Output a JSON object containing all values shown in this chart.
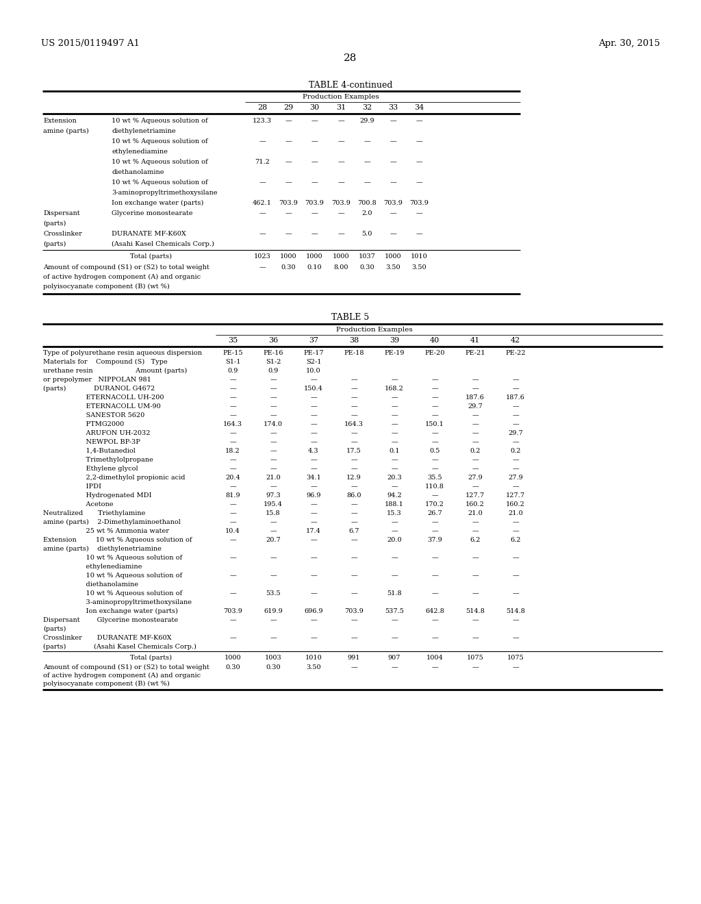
{
  "header_left": "US 2015/0119497 A1",
  "header_right": "Apr. 30, 2015",
  "page_number": "28",
  "table4_title": "TABLE 4-continued",
  "table4_subtitle": "Production Examples",
  "table4_columns": [
    "28",
    "29",
    "30",
    "31",
    "32",
    "33",
    "34"
  ],
  "table4_rows": [
    [
      "Extension",
      "10 wt % Aqueous solution of",
      [
        "123.3",
        "—",
        "—",
        "—",
        "29.9",
        "—",
        "—"
      ]
    ],
    [
      "amine (parts)",
      "diethylenetriamine",
      [
        "",
        "",
        "",
        "",
        "",
        "",
        ""
      ]
    ],
    [
      "",
      "10 wt % Aqueous solution of",
      [
        "—",
        "—",
        "—",
        "—",
        "—",
        "—",
        "—"
      ]
    ],
    [
      "",
      "ethylenediamine",
      [
        "",
        "",
        "",
        "",
        "",
        "",
        ""
      ]
    ],
    [
      "",
      "10 wt % Aqueous solution of",
      [
        "71.2",
        "—",
        "—",
        "—",
        "—",
        "—",
        "—"
      ]
    ],
    [
      "",
      "diethanolamine",
      [
        "",
        "",
        "",
        "",
        "",
        "",
        ""
      ]
    ],
    [
      "",
      "10 wt % Aqueous solution of",
      [
        "—",
        "—",
        "—",
        "—",
        "—",
        "—",
        "—"
      ]
    ],
    [
      "",
      "3-aminopropyltrimethoxysilane",
      [
        "",
        "",
        "",
        "",
        "",
        "",
        ""
      ]
    ],
    [
      "",
      "Ion exchange water (parts)",
      [
        "462.1",
        "703.9",
        "703.9",
        "703.9",
        "700.8",
        "703.9",
        "703.9"
      ]
    ],
    [
      "Dispersant",
      "Glycerine monostearate",
      [
        "—",
        "—",
        "—",
        "—",
        "2.0",
        "—",
        "—"
      ]
    ],
    [
      "(parts)",
      "",
      [
        "",
        "",
        "",
        "",
        "",
        "",
        ""
      ]
    ],
    [
      "Crosslinker",
      "DURANATE MF-K60X",
      [
        "—",
        "—",
        "—",
        "—",
        "5.0",
        "—",
        "—"
      ]
    ],
    [
      "(parts)",
      "(Asahi Kasel Chemicals Corp.)",
      [
        "",
        "",
        "",
        "",
        "",
        "",
        ""
      ]
    ]
  ],
  "table4_total_values": [
    "1023",
    "1000",
    "1000",
    "1000",
    "1037",
    "1000",
    "1010"
  ],
  "table4_amount_values": [
    "—",
    "0.30",
    "0.10",
    "8.00",
    "0.30",
    "3.50",
    "3.50"
  ],
  "table5_title": "TABLE 5",
  "table5_subtitle": "Production Examples",
  "table5_columns": [
    "35",
    "36",
    "37",
    "38",
    "39",
    "40",
    "41",
    "42"
  ],
  "table5_rows": [
    [
      "Type of polyurethane resin aqueous dispersion",
      [
        "PE-15",
        "PE-16",
        "PE-17",
        "PE-18",
        "PE-19",
        "PE-20",
        "PE-21",
        "PE-22"
      ]
    ],
    [
      "Materials for    Compound (S)   Type",
      [
        "S1-1",
        "S1-2",
        "S2-1",
        "",
        "",
        "",
        "",
        ""
      ]
    ],
    [
      "urethane resin                    Amount (parts)",
      [
        "0.9",
        "0.9",
        "10.0",
        "",
        "",
        "",
        "",
        ""
      ]
    ],
    [
      "or prepolymer   NIPPOLAN 981",
      [
        "—",
        "—",
        "—",
        "—",
        "—",
        "—",
        "—",
        "—"
      ]
    ],
    [
      "(parts)             DURANOL G4672",
      [
        "—",
        "—",
        "150.4",
        "—",
        "168.2",
        "—",
        "—",
        "—"
      ]
    ],
    [
      "                    ETERNACOLL UH-200",
      [
        "—",
        "—",
        "—",
        "—",
        "—",
        "—",
        "187.6",
        "187.6"
      ]
    ],
    [
      "                    ETERNACOLL UM-90",
      [
        "—",
        "—",
        "—",
        "—",
        "—",
        "—",
        "29.7",
        "—"
      ]
    ],
    [
      "                    SANESTOR 5620",
      [
        "—",
        "—",
        "—",
        "—",
        "—",
        "—",
        "—",
        "—"
      ]
    ],
    [
      "                    PTMG2000",
      [
        "164.3",
        "174.0",
        "—",
        "164.3",
        "—",
        "150.1",
        "—",
        "—"
      ]
    ],
    [
      "                    ARUFON UH-2032",
      [
        "—",
        "—",
        "—",
        "—",
        "—",
        "—",
        "—",
        "29.7"
      ]
    ],
    [
      "                    NEWPOL BP-3P",
      [
        "—",
        "—",
        "—",
        "—",
        "—",
        "—",
        "—",
        "—"
      ]
    ],
    [
      "                    1,4-Butanediol",
      [
        "18.2",
        "—",
        "4.3",
        "17.5",
        "0.1",
        "0.5",
        "0.2",
        "0.2"
      ]
    ],
    [
      "                    Trimethylolpropane",
      [
        "—",
        "—",
        "—",
        "—",
        "—",
        "—",
        "—",
        "—"
      ]
    ],
    [
      "                    Ethylene glycol",
      [
        "—",
        "—",
        "—",
        "—",
        "—",
        "—",
        "—",
        "—"
      ]
    ],
    [
      "                    2,2-dimethylol propionic acid",
      [
        "20.4",
        "21.0",
        "34.1",
        "12.9",
        "20.3",
        "35.5",
        "27.9",
        "27.9"
      ]
    ],
    [
      "                    IPDI",
      [
        "—",
        "—",
        "—",
        "—",
        "—",
        "110.8",
        "—",
        "—"
      ]
    ],
    [
      "                    Hydrogenated MDI",
      [
        "81.9",
        "97.3",
        "96.9",
        "86.0",
        "94.2",
        "—",
        "127.7",
        "127.7"
      ]
    ],
    [
      "                    Acetone",
      [
        "—",
        "195.4",
        "—",
        "—",
        "188.1",
        "170.2",
        "160.2",
        "160.2"
      ]
    ],
    [
      "Neutralized       Triethylamine",
      [
        "—",
        "15.8",
        "—",
        "—",
        "15.3",
        "26.7",
        "21.0",
        "21.0"
      ]
    ],
    [
      "amine (parts)    2-Dimethylaminoethanol",
      [
        "—",
        "—",
        "—",
        "—",
        "—",
        "—",
        "—",
        "—"
      ]
    ],
    [
      "                    25 wt % Ammonia water",
      [
        "10.4",
        "—",
        "17.4",
        "6.7",
        "—",
        "—",
        "—",
        "—"
      ]
    ],
    [
      "Extension         10 wt % Aqueous solution of",
      [
        "—",
        "20.7",
        "—",
        "—",
        "20.0",
        "37.9",
        "6.2",
        "6.2"
      ]
    ],
    [
      "amine (parts)    diethylenetriamine",
      [
        "",
        "",
        "",
        "",
        "",
        "",
        "",
        ""
      ]
    ],
    [
      "                    10 wt % Aqueous solution of",
      [
        "—",
        "—",
        "—",
        "—",
        "—",
        "—",
        "—",
        "—"
      ]
    ],
    [
      "                    ethylenediamine",
      [
        "",
        "",
        "",
        "",
        "",
        "",
        "",
        ""
      ]
    ],
    [
      "                    10 wt % Aqueous solution of",
      [
        "—",
        "—",
        "—",
        "—",
        "—",
        "—",
        "—",
        "—"
      ]
    ],
    [
      "                    diethanolamine",
      [
        "",
        "",
        "",
        "",
        "",
        "",
        "",
        ""
      ]
    ],
    [
      "                    10 wt % Aqueous solution of",
      [
        "—",
        "53.5",
        "—",
        "—",
        "51.8",
        "—",
        "—",
        "—"
      ]
    ],
    [
      "                    3-aminopropyltrimethoxysilane",
      [
        "",
        "",
        "",
        "",
        "",
        "",
        "",
        ""
      ]
    ],
    [
      "                    Ion exchange water (parts)",
      [
        "703.9",
        "619.9",
        "696.9",
        "703.9",
        "537.5",
        "642.8",
        "514.8",
        "514.8"
      ]
    ],
    [
      "Dispersant        Glycerine monostearate",
      [
        "—",
        "—",
        "—",
        "—",
        "—",
        "—",
        "—",
        "—"
      ]
    ],
    [
      "(parts)",
      [
        "",
        "",
        "",
        "",
        "",
        "",
        "",
        ""
      ]
    ],
    [
      "Crosslinker       DURANATE MF-K60X",
      [
        "—",
        "—",
        "—",
        "—",
        "—",
        "—",
        "—",
        "—"
      ]
    ],
    [
      "(parts)             (Asahi Kasel Chemicals Corp.)",
      ""
    ]
  ],
  "table5_total_values": [
    "1000",
    "1003",
    "1010",
    "991",
    "907",
    "1004",
    "1075",
    "1075"
  ],
  "table5_amount_values": [
    "0.30",
    "0.30",
    "3.50",
    "—",
    "—",
    "—",
    "—",
    "—"
  ]
}
